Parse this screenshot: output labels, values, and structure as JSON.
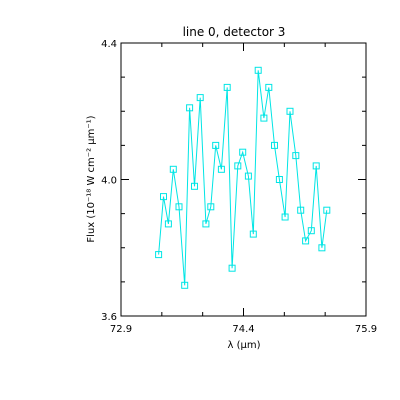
{
  "chart_data": {
    "type": "line",
    "title": "line 0, detector 3",
    "xlabel": "λ (μm)",
    "ylabel": "Flux (10⁻¹⁸ W cm⁻² μm⁻¹)",
    "xlim": [
      72.9,
      75.9
    ],
    "ylim": [
      3.6,
      4.4
    ],
    "x_ticks": [
      "72.9",
      "74.4",
      "75.9"
    ],
    "y_ticks": [
      "3.6",
      "4.0",
      "4.4"
    ],
    "grid": false,
    "series_color": "#00e5e5",
    "marker": "square",
    "series": [
      {
        "x": [
          73.36,
          73.42,
          73.48,
          73.54,
          73.61,
          73.68,
          73.74,
          73.8,
          73.87,
          73.94,
          74.0,
          74.06,
          74.13,
          74.2,
          74.26,
          74.33,
          74.39,
          74.46,
          74.52,
          74.58,
          74.65,
          74.71,
          74.78,
          74.84,
          74.91,
          74.97,
          75.04,
          75.1,
          75.16,
          75.23,
          75.29,
          75.36,
          75.42
        ],
        "y": [
          3.78,
          3.95,
          3.87,
          4.03,
          3.92,
          3.69,
          4.21,
          3.98,
          4.24,
          3.87,
          3.92,
          4.1,
          4.03,
          4.27,
          3.74,
          4.04,
          4.08,
          4.01,
          3.84,
          4.32,
          4.18,
          4.27,
          4.1,
          4.0,
          3.89,
          4.2,
          4.07,
          3.91,
          3.82,
          3.85,
          4.04,
          3.8,
          3.91
        ]
      }
    ]
  }
}
